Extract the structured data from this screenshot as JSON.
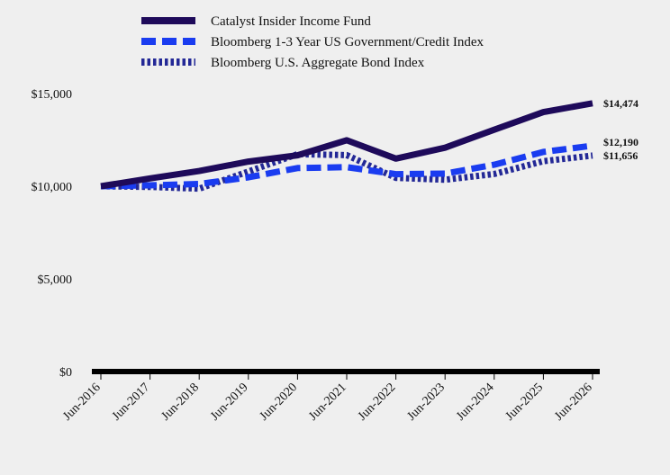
{
  "chart_data": {
    "type": "line",
    "x": [
      "Jun-2016",
      "Jun-2017",
      "Jun-2018",
      "Jun-2019",
      "Jun-2020",
      "Jun-2021",
      "Jun-2022",
      "Jun-2023",
      "Jun-2024",
      "Jun-2025",
      "Jun-2026"
    ],
    "ylim": [
      0,
      15000
    ],
    "yticks": [
      {
        "value": 0,
        "label": "$0"
      },
      {
        "value": 5000,
        "label": "$5,000"
      },
      {
        "value": 10000,
        "label": "$10,000"
      },
      {
        "value": 15000,
        "label": "$15,000"
      }
    ],
    "series": [
      {
        "name": "Catalyst Insider Income Fund",
        "color": "#1e0a5a",
        "style": "solid",
        "values": [
          10000,
          10420,
          10820,
          11330,
          11670,
          12480,
          11490,
          12080,
          13050,
          14000,
          14474
        ],
        "end_label": "$14,474"
      },
      {
        "name": "Bloomberg 1-3 Year US Government/Credit Index",
        "color": "#1a3cf0",
        "style": "dashed",
        "values": [
          10000,
          10050,
          10120,
          10480,
          10980,
          11030,
          10650,
          10680,
          11160,
          11850,
          12190
        ],
        "end_label": "$12,190"
      },
      {
        "name": "Bloomberg U.S. Aggregate Bond Index",
        "color": "#232896",
        "style": "dotted",
        "values": [
          10000,
          9960,
          9870,
          10790,
          11730,
          11680,
          10450,
          10350,
          10660,
          11350,
          11656
        ],
        "end_label": "$11,656"
      }
    ],
    "grid": false,
    "legend": "top"
  }
}
